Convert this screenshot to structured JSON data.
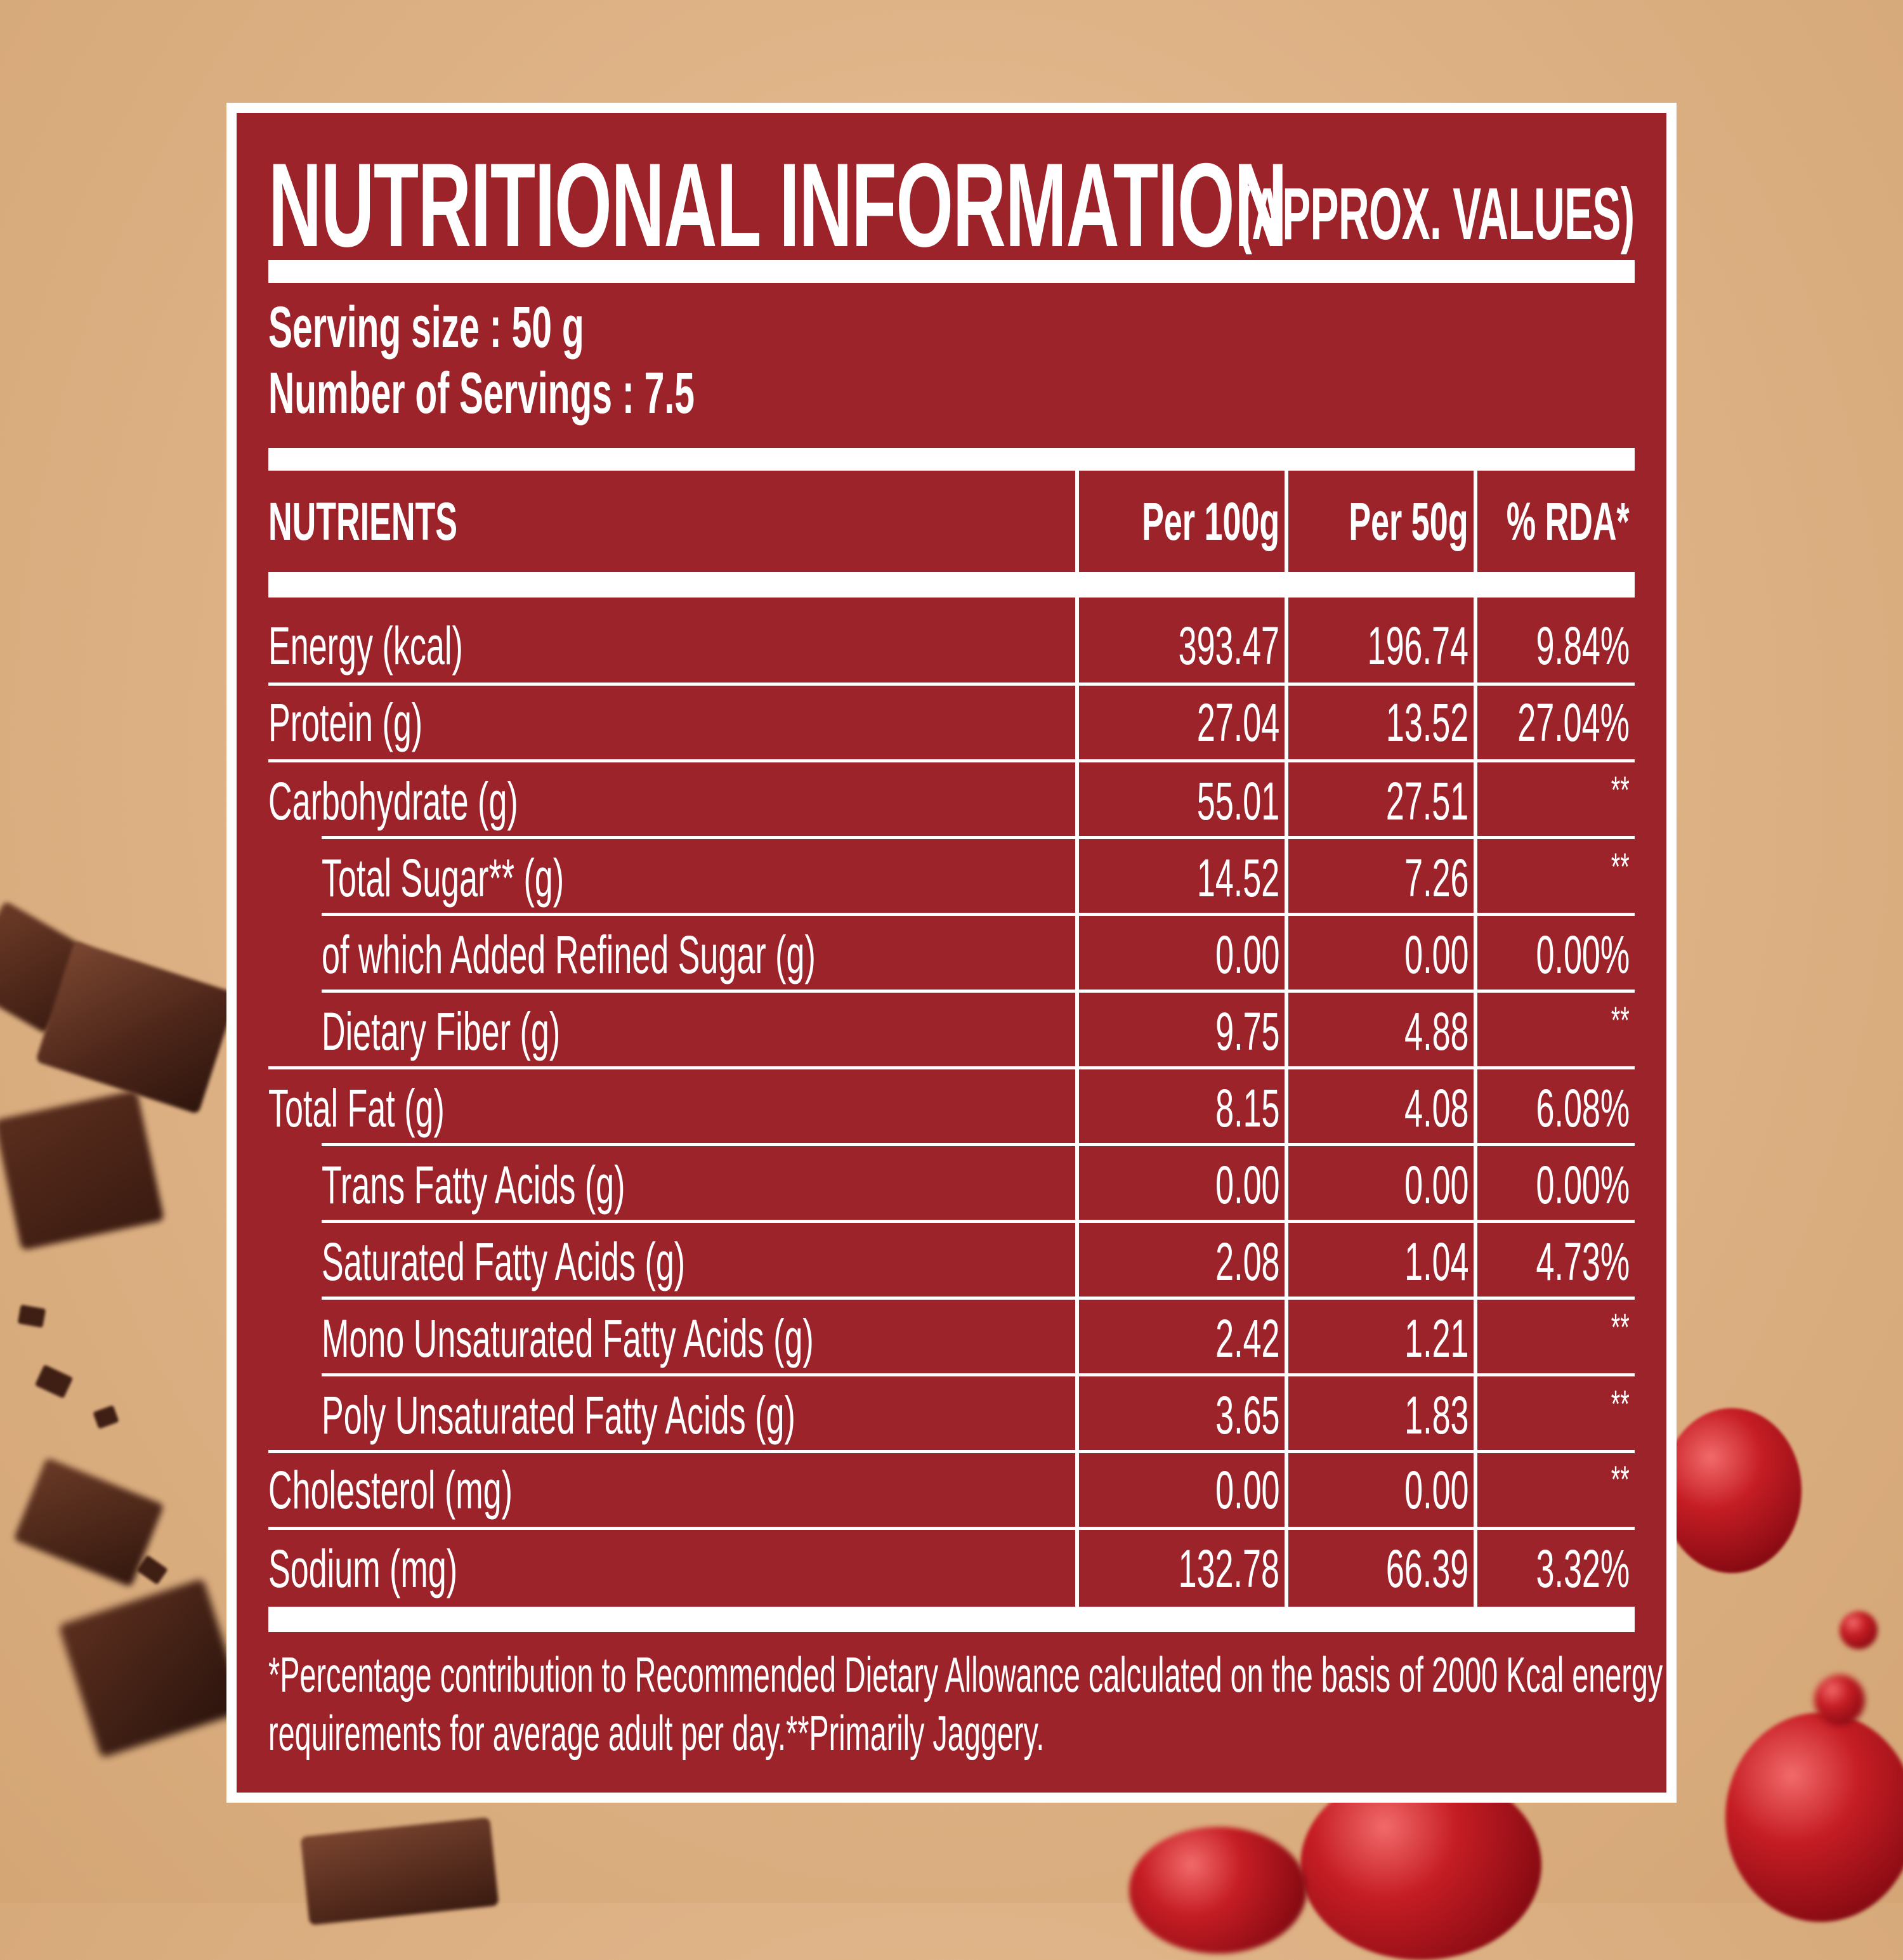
{
  "title": {
    "main": "NUTRITIONAL INFORMATION",
    "sub": "(APPROX. VALUES)"
  },
  "serving": {
    "size": "Serving size : 50 g",
    "count": "Number of Servings : 7.5"
  },
  "table": {
    "headers": [
      "NUTRIENTS",
      "Per 100g",
      "Per 50g",
      "% RDA*"
    ],
    "rows": [
      {
        "name": "Energy (kcal)",
        "per100": "393.47",
        "per50": "196.74",
        "rda": "9.84%"
      },
      {
        "name": "Protein (g)",
        "per100": "27.04",
        "per50": "13.52",
        "rda": "27.04%"
      },
      {
        "name": "Carbohydrate (g)",
        "per100": "55.01",
        "per50": "27.51",
        "rda": "**"
      },
      {
        "name": "Total Sugar** (g)",
        "per100": "14.52",
        "per50": "7.26",
        "rda": "**"
      },
      {
        "name": "of which Added Refined Sugar (g)",
        "per100": "0.00",
        "per50": "0.00",
        "rda": "0.00%"
      },
      {
        "name": "Dietary Fiber (g)",
        "per100": "9.75",
        "per50": "4.88",
        "rda": "**"
      },
      {
        "name": "Total Fat (g)",
        "per100": "8.15",
        "per50": "4.08",
        "rda": "6.08%"
      },
      {
        "name": "Trans Fatty Acids (g)",
        "per100": "0.00",
        "per50": "0.00",
        "rda": "0.00%"
      },
      {
        "name": "Saturated Fatty Acids (g)",
        "per100": "2.08",
        "per50": "1.04",
        "rda": "4.73%"
      },
      {
        "name": "Mono Unsaturated Fatty Acids (g)",
        "per100": "2.42",
        "per50": "1.21",
        "rda": "**"
      },
      {
        "name": "Poly Unsaturated Fatty Acids (g)",
        "per100": "3.65",
        "per50": "1.83",
        "rda": "**"
      },
      {
        "name": "Cholesterol (mg)",
        "per100": "0.00",
        "per50": "0.00",
        "rda": "**"
      },
      {
        "name": "Sodium (mg)",
        "per100": "132.78",
        "per50": "66.39",
        "rda": "3.32%"
      }
    ]
  },
  "footnote": {
    "line1": "*Percentage contribution to Recommended Dietary Allowance calculated on the basis of 2000 Kcal energy",
    "line2": "requirements for average adult per day.**Primarily Jaggery."
  },
  "colors": {
    "panel": "#9d232b",
    "text": "#ffffff",
    "background": "#ddb184"
  }
}
